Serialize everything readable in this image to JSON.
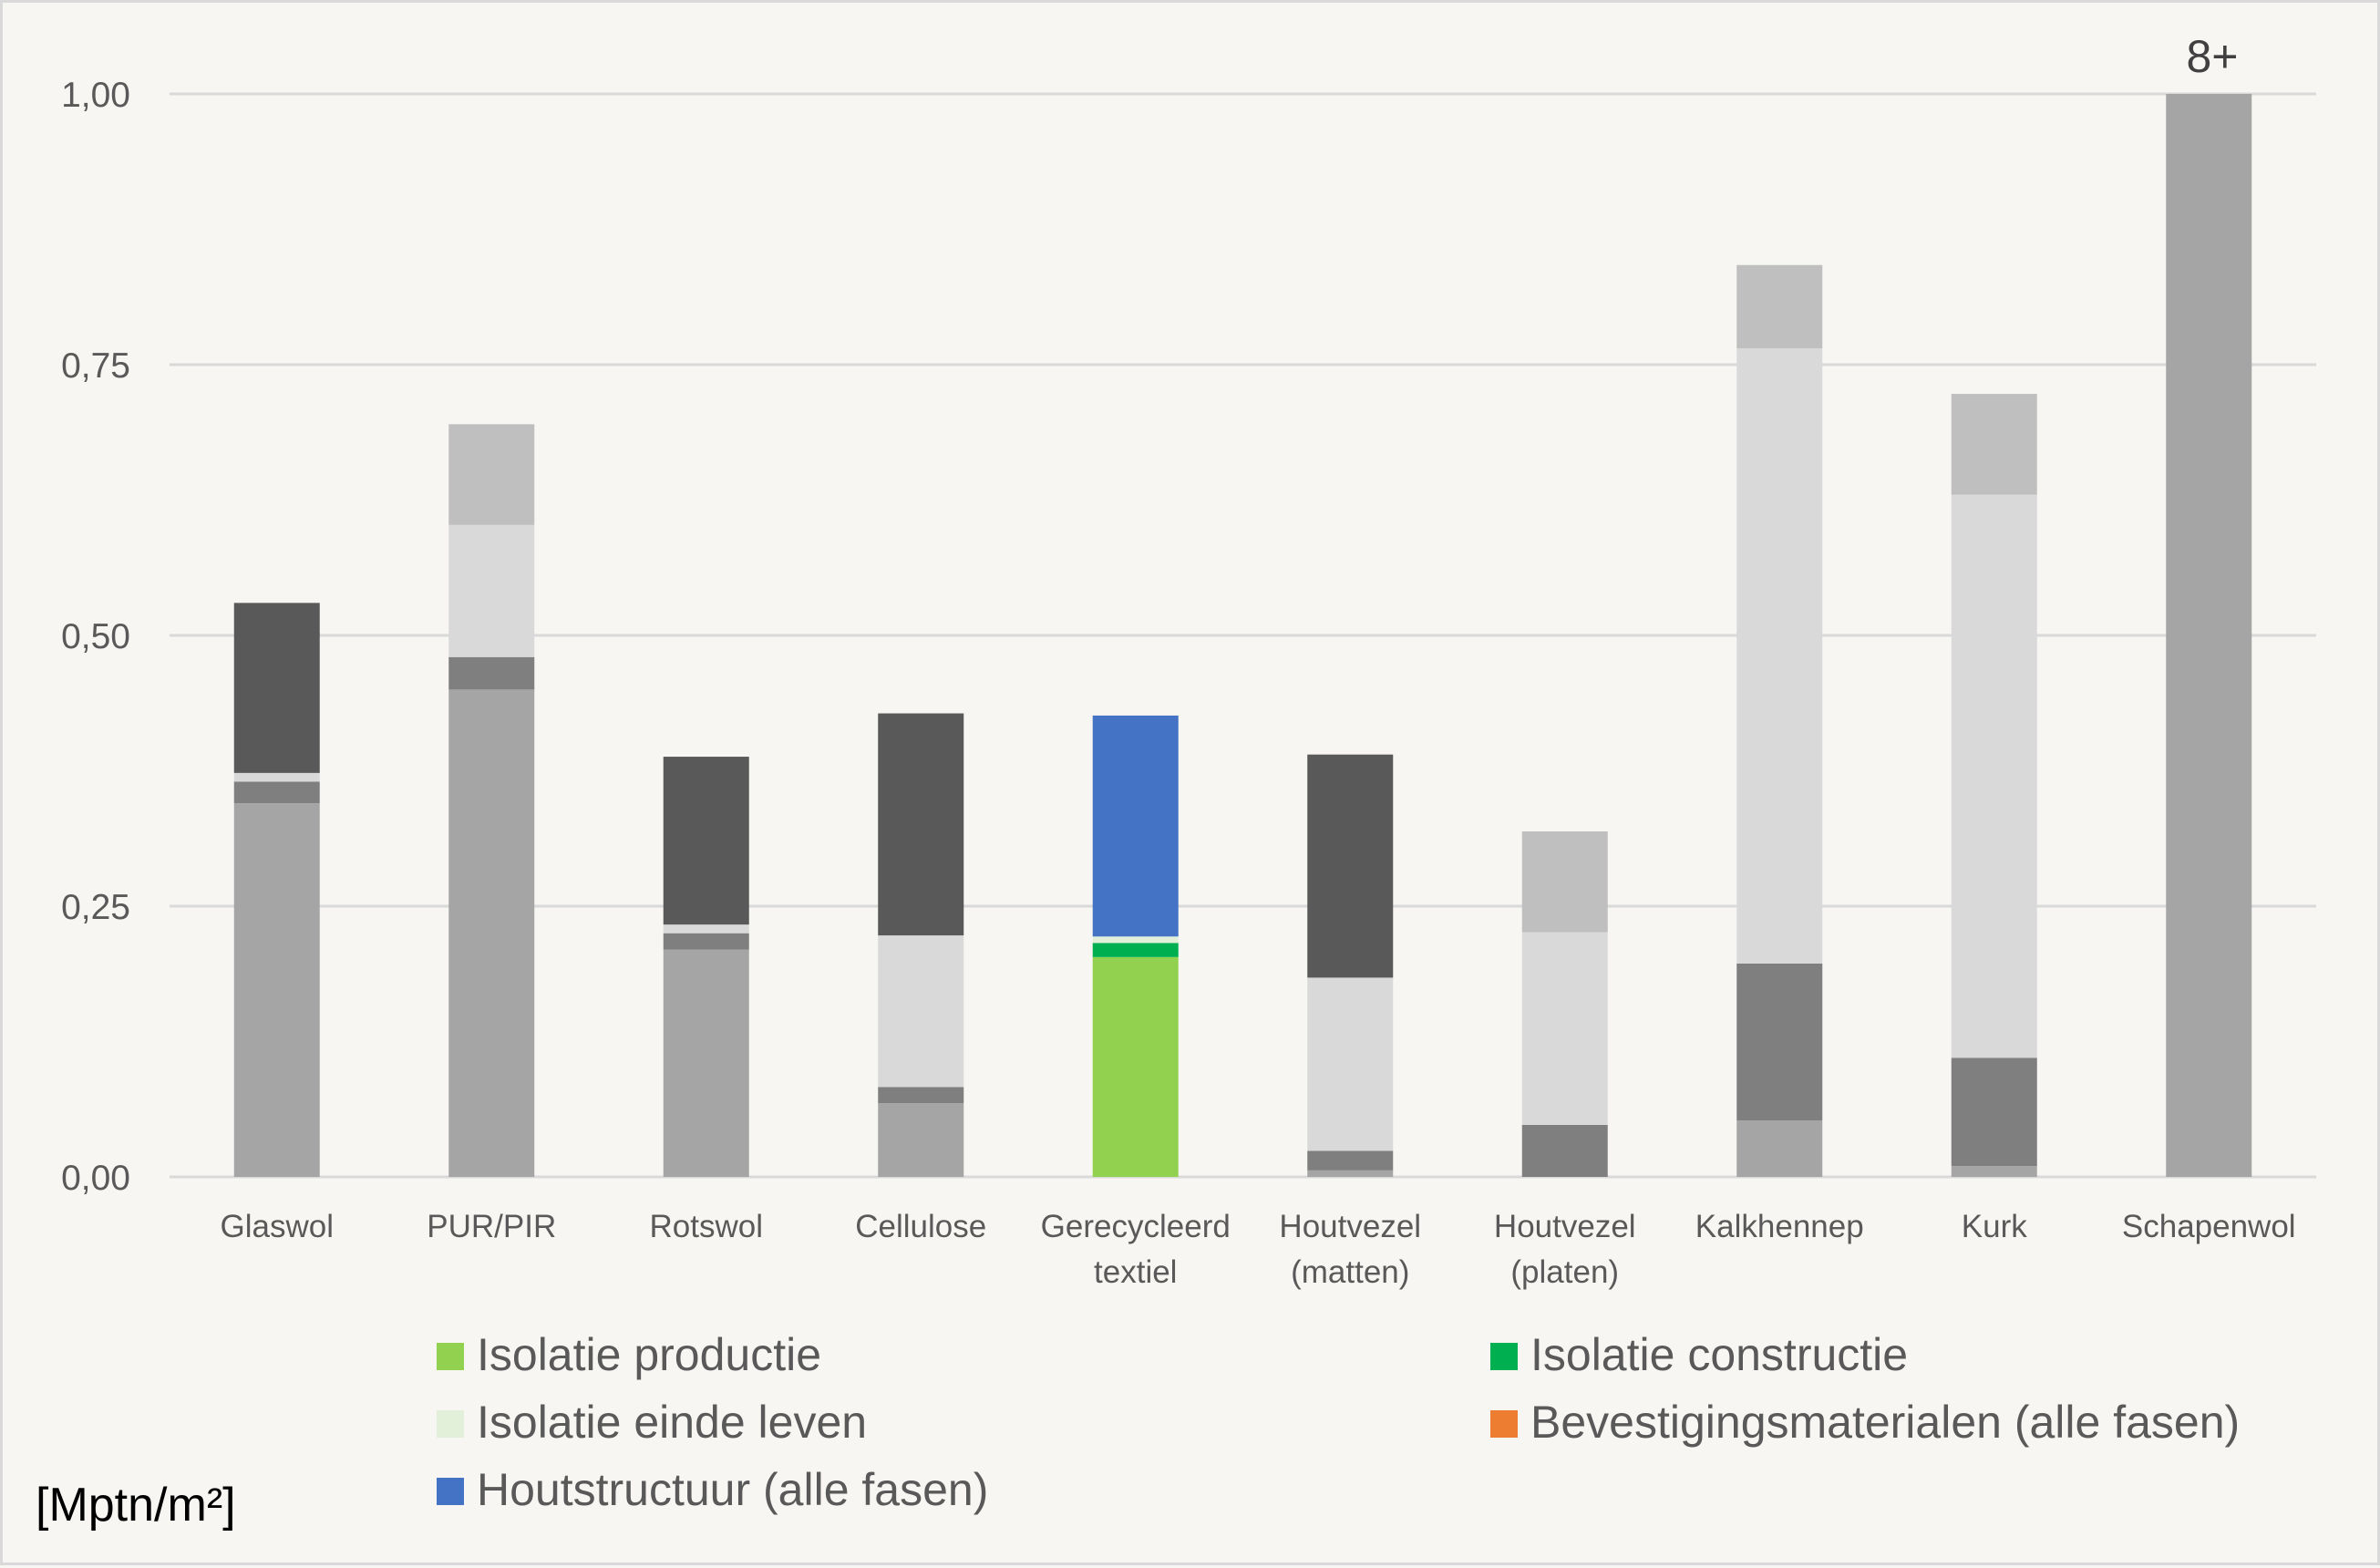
{
  "chart_data": {
    "type": "bar",
    "stacked": true,
    "unit_label": "[Mptn/m²]",
    "overflow_label": "8+",
    "ylim": [
      0,
      1
    ],
    "y_ticks": [
      "0,00",
      "0,25",
      "0,50",
      "0,75",
      "1,00"
    ],
    "grid": true,
    "legend_position": "bottom",
    "categories": [
      [
        "Glaswol"
      ],
      [
        "PUR/PIR"
      ],
      [
        "Rotswol"
      ],
      [
        "Cellulose"
      ],
      [
        "Gerecycleerd",
        "textiel"
      ],
      [
        "Houtvezel",
        "(matten)"
      ],
      [
        "Houtvezel",
        "(platen)"
      ],
      [
        "Kalkhennep"
      ],
      [
        "Kurk"
      ],
      [
        "Schapenwol"
      ]
    ],
    "legend": [
      {
        "name": "Isolatie productie",
        "color": "#92d050"
      },
      {
        "name": "Isolatie constructie",
        "color": "#00b050"
      },
      {
        "name": "Isolatie einde leven",
        "color": "#e2f0d9"
      },
      {
        "name": "Bevestigingsmaterialen (alle fasen)",
        "color": "#ed7d31"
      },
      {
        "name": "Houtstructuur (alle fasen)",
        "color": "#4472c4"
      }
    ],
    "stacks": [
      {
        "segments": [
          {
            "value": 0.345,
            "color": "#a5a5a5"
          },
          {
            "value": 0.02,
            "color": "#7f7f7f"
          },
          {
            "value": 0.008,
            "color": "#d9d9d9"
          },
          {
            "value": 0.157,
            "color": "#595959"
          }
        ]
      },
      {
        "segments": [
          {
            "value": 0.45,
            "color": "#a5a5a5"
          },
          {
            "value": 0.03,
            "color": "#7f7f7f"
          },
          {
            "value": 0.122,
            "color": "#d9d9d9"
          },
          {
            "value": 0.093,
            "color": "#bfbfbf"
          }
        ]
      },
      {
        "segments": [
          {
            "value": 0.21,
            "color": "#a5a5a5"
          },
          {
            "value": 0.015,
            "color": "#7f7f7f"
          },
          {
            "value": 0.008,
            "color": "#d9d9d9"
          },
          {
            "value": 0.155,
            "color": "#595959"
          }
        ]
      },
      {
        "segments": [
          {
            "value": 0.068,
            "color": "#a5a5a5"
          },
          {
            "value": 0.015,
            "color": "#7f7f7f"
          },
          {
            "value": 0.14,
            "color": "#d9d9d9"
          },
          {
            "value": 0.205,
            "color": "#595959"
          }
        ]
      },
      {
        "segments": [
          {
            "value": 0.203,
            "color": "#92d050"
          },
          {
            "value": 0.013,
            "color": "#00b050"
          },
          {
            "value": 0.006,
            "color": "#e2f0d9"
          },
          {
            "value": 0.204,
            "color": "#4472c4"
          }
        ]
      },
      {
        "segments": [
          {
            "value": 0.006,
            "color": "#a5a5a5"
          },
          {
            "value": 0.018,
            "color": "#7f7f7f"
          },
          {
            "value": 0.16,
            "color": "#d9d9d9"
          },
          {
            "value": 0.206,
            "color": "#595959"
          }
        ]
      },
      {
        "segments": [
          {
            "value": 0.048,
            "color": "#7f7f7f"
          },
          {
            "value": 0.178,
            "color": "#d9d9d9"
          },
          {
            "value": 0.093,
            "color": "#bfbfbf"
          }
        ]
      },
      {
        "segments": [
          {
            "value": 0.052,
            "color": "#a5a5a5"
          },
          {
            "value": 0.145,
            "color": "#7f7f7f"
          },
          {
            "value": 0.568,
            "color": "#d9d9d9"
          },
          {
            "value": 0.077,
            "color": "#bfbfbf"
          }
        ]
      },
      {
        "segments": [
          {
            "value": 0.01,
            "color": "#a5a5a5"
          },
          {
            "value": 0.1,
            "color": "#7f7f7f"
          },
          {
            "value": 0.52,
            "color": "#d9d9d9"
          },
          {
            "value": 0.093,
            "color": "#bfbfbf"
          }
        ]
      },
      {
        "segments": [
          {
            "value": 1.0,
            "color": "#a5a5a5"
          }
        ]
      }
    ]
  }
}
